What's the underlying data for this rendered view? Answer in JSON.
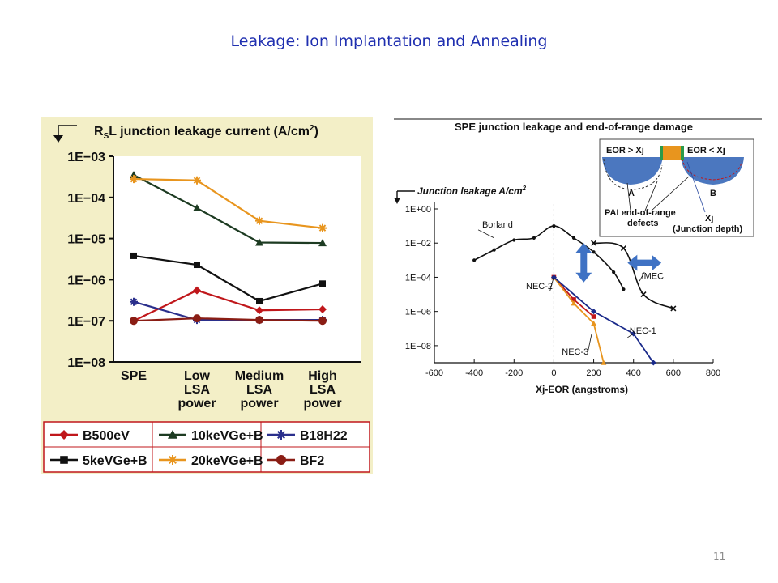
{
  "slide": {
    "title": "Leakage: Ion Implantation and Annealing",
    "page_number": "11"
  },
  "chart_data": [
    {
      "type": "line",
      "ylabel": "RSL junction leakage current (A/cm2)",
      "ylabel_parts": {
        "r": "R",
        "s": "S",
        "rest": "L junction leakage current (A/cm",
        "sup": "2",
        "close": ")"
      },
      "y_scale": "log",
      "ylim": [
        1e-08,
        0.001
      ],
      "y_ticks": [
        0.001,
        0.0001,
        1e-05,
        1e-06,
        1e-07,
        1e-08
      ],
      "y_tick_labels": [
        "1E−03",
        "1E−04",
        "1E−05",
        "1E−06",
        "1E−07",
        "1E−08"
      ],
      "categories": [
        "SPE",
        "Low LSA power",
        "Medium LSA power",
        "High LSA power"
      ],
      "category_label_lines": [
        [
          "SPE"
        ],
        [
          "Low",
          "LSA",
          "power"
        ],
        [
          "Medium",
          "LSA",
          "power"
        ],
        [
          "High",
          "LSA",
          "power"
        ]
      ],
      "legend_position": "bottom",
      "series": [
        {
          "name": "B500eV",
          "color": "#c0171b",
          "marker": "diamond",
          "values": [
            1e-07,
            5.5e-07,
            1.8e-07,
            1.9e-07
          ]
        },
        {
          "name": "10keVGe+B",
          "color": "#1d3b22",
          "marker": "triangle",
          "values": [
            0.00035,
            5.5e-05,
            8e-06,
            7.8e-06
          ]
        },
        {
          "name": "B18H22",
          "color": "#2a2f8c",
          "marker": "asterisk",
          "values": [
            2.9e-07,
            1.05e-07,
            1.05e-07,
            1.05e-07
          ]
        },
        {
          "name": "5keVGe+B",
          "color": "#111111",
          "marker": "square",
          "values": [
            3.8e-06,
            2.3e-06,
            3e-07,
            8e-07
          ]
        },
        {
          "name": "20keVGe+B",
          "color": "#e8951e",
          "marker": "asterisk",
          "values": [
            0.00028,
            0.00026,
            2.7e-05,
            1.8e-05
          ]
        },
        {
          "name": "BF2",
          "color": "#8a1d14",
          "marker": "circle",
          "values": [
            1e-07,
            1.15e-07,
            1.05e-07,
            1e-07
          ]
        }
      ]
    },
    {
      "type": "line",
      "title": "SPE junction leakage and end-of-range damage",
      "ylabel": "Junction leakage A/cm2",
      "ylabel_parts": {
        "rest": "Junction leakage A/cm",
        "sup": "2"
      },
      "xlabel": "Xj-EOR (angstroms)",
      "y_scale": "log",
      "ylim": [
        1e-09,
        1
      ],
      "y_ticks": [
        1,
        0.01,
        0.0001,
        1e-06,
        1e-08
      ],
      "y_tick_labels": [
        "1E+00",
        "1E−02",
        "1E−04",
        "1E−06",
        "1E−08"
      ],
      "xlim": [
        -600,
        800
      ],
      "x_ticks": [
        -600,
        -400,
        -200,
        0,
        200,
        400,
        600,
        800
      ],
      "x_tick_labels": [
        "-600",
        "-400",
        "-200",
        "0",
        "200",
        "400",
        "600",
        "800"
      ],
      "series": [
        {
          "name": "Borland",
          "color": "#111111",
          "marker": "dot",
          "x": [
            -400,
            -300,
            -200,
            -100,
            0,
            100,
            200,
            300,
            350
          ],
          "y": [
            0.001,
            0.004,
            0.015,
            0.02,
            0.1,
            0.02,
            0.003,
            0.0002,
            2e-05
          ]
        },
        {
          "name": "IMEC",
          "color": "#111111",
          "marker": "x",
          "x": [
            200,
            350,
            450,
            600
          ],
          "y": [
            0.01,
            0.005,
            1e-05,
            1.5e-06
          ]
        },
        {
          "name": "NEC-2",
          "color": "#c0171b",
          "marker": "square",
          "x": [
            0,
            100,
            200
          ],
          "y": [
            0.0001,
            5e-06,
            5e-07
          ]
        },
        {
          "name": "NEC-3",
          "color": "#e8951e",
          "marker": "triangle",
          "x": [
            0,
            100,
            200,
            250
          ],
          "y": [
            0.0001,
            3e-06,
            2e-07,
            1e-09
          ]
        },
        {
          "name": "NEC-1",
          "color": "#1a2a8a",
          "marker": "diamond",
          "x": [
            0,
            200,
            400,
            500
          ],
          "y": [
            0.0001,
            1e-06,
            5e-08,
            1e-09
          ]
        }
      ],
      "series_labels": [
        "Borland",
        "IMEC",
        "NEC-2",
        "NEC-3",
        "NEC-1"
      ],
      "inset": {
        "left_label": "EOR > Xj",
        "right_label": "EOR < Xj",
        "a_label": "A",
        "b_label": "B",
        "defects_label_line1": "PAI end-of-range",
        "defects_label_line2": "defects",
        "xj_label": "Xj",
        "xj_desc": "(Junction depth)"
      },
      "arrow_color": "#3f72c4"
    }
  ]
}
